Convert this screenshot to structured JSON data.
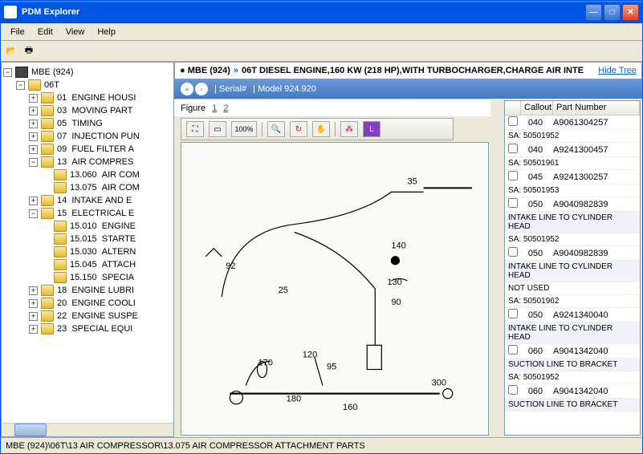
{
  "window": {
    "title": "PDM Explorer"
  },
  "menus": [
    "File",
    "Edit",
    "View",
    "Help"
  ],
  "tree": {
    "root": "MBE (924)",
    "sub": "06T",
    "items": [
      {
        "code": "01",
        "label": "ENGINE HOUSI",
        "exp": "+",
        "closed": true,
        "indent": 2
      },
      {
        "code": "03",
        "label": "MOVING PART",
        "exp": "+",
        "closed": true,
        "indent": 2
      },
      {
        "code": "05",
        "label": "TIMING",
        "exp": "+",
        "closed": true,
        "indent": 2
      },
      {
        "code": "07",
        "label": "INJECTION PUN",
        "exp": "+",
        "closed": true,
        "indent": 2
      },
      {
        "code": "09",
        "label": "FUEL FILTER A",
        "exp": "+",
        "closed": true,
        "indent": 2
      },
      {
        "code": "13",
        "label": "AIR COMPRES",
        "exp": "−",
        "closed": false,
        "indent": 2
      },
      {
        "code": "13.060",
        "label": "AIR COM",
        "exp": "",
        "closed": true,
        "indent": 3
      },
      {
        "code": "13.075",
        "label": "AIR COM",
        "exp": "",
        "closed": true,
        "indent": 3,
        "selected": false
      },
      {
        "code": "14",
        "label": "INTAKE AND E",
        "exp": "+",
        "closed": true,
        "indent": 2
      },
      {
        "code": "15",
        "label": "ELECTRICAL E",
        "exp": "−",
        "closed": false,
        "indent": 2
      },
      {
        "code": "15.010",
        "label": "ENGINE",
        "exp": "",
        "closed": true,
        "indent": 3
      },
      {
        "code": "15.015",
        "label": "STARTE",
        "exp": "",
        "closed": true,
        "indent": 3
      },
      {
        "code": "15.030",
        "label": "ALTERN",
        "exp": "",
        "closed": true,
        "indent": 3
      },
      {
        "code": "15.045",
        "label": "ATTACH",
        "exp": "",
        "closed": true,
        "indent": 3
      },
      {
        "code": "15.150",
        "label": "SPECIA",
        "exp": "",
        "closed": true,
        "indent": 3
      },
      {
        "code": "18",
        "label": "ENGINE LUBRI",
        "exp": "+",
        "closed": true,
        "indent": 2
      },
      {
        "code": "20",
        "label": "ENGINE COOLI",
        "exp": "+",
        "closed": true,
        "indent": 2
      },
      {
        "code": "22",
        "label": "ENGINE SUSPE",
        "exp": "+",
        "closed": true,
        "indent": 2
      },
      {
        "code": "23",
        "label": "SPECIAL EQUI",
        "exp": "+",
        "closed": true,
        "indent": 2
      }
    ]
  },
  "breadcrumb": {
    "dot": "●",
    "p1": "MBE (924)",
    "p2": "06T DIESEL ENGINE,160 KW (218 HP),WITH TURBOCHARGER,CHARGE AIR INTE",
    "hide": "Hide Tree"
  },
  "subbar": {
    "serial": "| Serial#",
    "model": "| Model 924.920"
  },
  "figure": {
    "label": "Figure",
    "n1": "1",
    "n2": "2"
  },
  "zoom": "100%",
  "diagram": {
    "callouts": [
      "25",
      "35",
      "90",
      "92",
      "95",
      "120",
      "130",
      "140",
      "160",
      "170",
      "180",
      "300"
    ]
  },
  "parts": {
    "headers": [
      "Callout",
      "Part Number"
    ],
    "rows": [
      {
        "type": "part",
        "callout": "040",
        "pn": "A9061304257"
      },
      {
        "type": "sa",
        "text": "SA:  50501952"
      },
      {
        "type": "part",
        "callout": "040",
        "pn": "A9241300457"
      },
      {
        "type": "sa",
        "text": "SA:  50501961"
      },
      {
        "type": "part",
        "callout": "045",
        "pn": "A9241300257"
      },
      {
        "type": "sa",
        "text": "SA:  50501953"
      },
      {
        "type": "part",
        "callout": "050",
        "pn": "A9040982839"
      },
      {
        "type": "desc",
        "text": "INTAKE LINE TO CYLINDER HEAD"
      },
      {
        "type": "sa",
        "text": "SA:  50501952"
      },
      {
        "type": "part",
        "callout": "050",
        "pn": "A9040982839"
      },
      {
        "type": "desc",
        "text": "INTAKE LINE TO CYLINDER HEAD"
      },
      {
        "type": "sa",
        "text": "NOT USED"
      },
      {
        "type": "sa",
        "text": "SA:  50501962"
      },
      {
        "type": "part",
        "callout": "050",
        "pn": "A9241340040"
      },
      {
        "type": "desc",
        "text": "INTAKE LINE TO CYLINDER HEAD"
      },
      {
        "type": "part",
        "callout": "060",
        "pn": "A9041342040"
      },
      {
        "type": "desc",
        "text": "SUCTION LINE TO BRACKET"
      },
      {
        "type": "sa",
        "text": "SA:  50501952"
      },
      {
        "type": "part",
        "callout": "060",
        "pn": "A9041342040"
      },
      {
        "type": "desc",
        "text": "SUCTION LINE TO BRACKET"
      }
    ]
  },
  "status": "MBE (924)\\06T\\13  AIR COMPRESSOR\\13.075  AIR COMPRESSOR ATTACHMENT PARTS",
  "colors": {
    "titlebar": "#0054e3",
    "accent": "#316ac5",
    "subbar": "#4878c0",
    "link": "#0066cc"
  }
}
